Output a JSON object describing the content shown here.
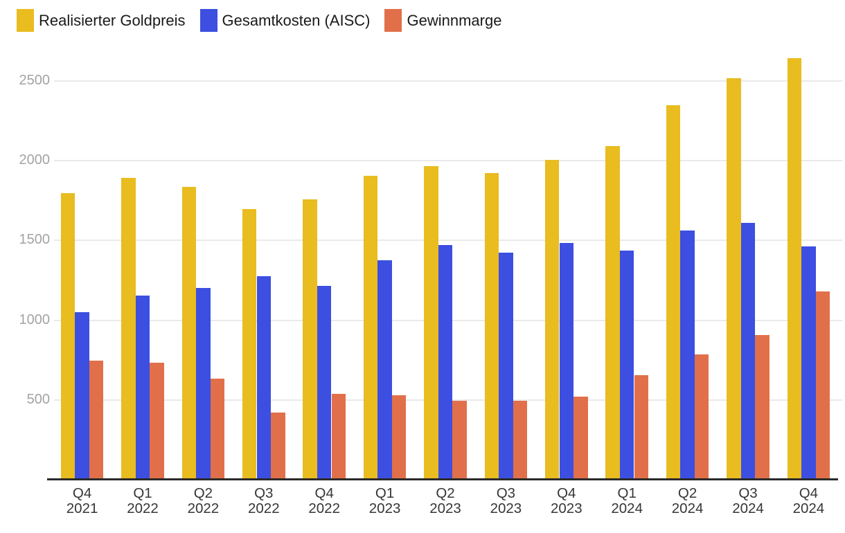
{
  "chart_data": {
    "type": "bar",
    "title": "",
    "xlabel": "",
    "ylabel": "",
    "categories": [
      {
        "quarter": "Q4",
        "year": "2021"
      },
      {
        "quarter": "Q1",
        "year": "2022"
      },
      {
        "quarter": "Q2",
        "year": "2022"
      },
      {
        "quarter": "Q3",
        "year": "2022"
      },
      {
        "quarter": "Q4",
        "year": "2022"
      },
      {
        "quarter": "Q1",
        "year": "2023"
      },
      {
        "quarter": "Q2",
        "year": "2023"
      },
      {
        "quarter": "Q3",
        "year": "2023"
      },
      {
        "quarter": "Q4",
        "year": "2023"
      },
      {
        "quarter": "Q1",
        "year": "2024"
      },
      {
        "quarter": "Q2",
        "year": "2024"
      },
      {
        "quarter": "Q3",
        "year": "2024"
      },
      {
        "quarter": "Q4",
        "year": "2024"
      }
    ],
    "series": [
      {
        "name": "Realisierter Goldpreis",
        "color": "#E9BC20",
        "values": [
          1795,
          1890,
          1835,
          1695,
          1755,
          1905,
          1965,
          1920,
          2005,
          2090,
          2345,
          2515,
          2640
        ]
      },
      {
        "name": "Gesamtkosten (AISC)",
        "color": "#3C4FE1",
        "values": [
          1050,
          1155,
          1200,
          1275,
          1215,
          1375,
          1470,
          1425,
          1485,
          1435,
          1560,
          1610,
          1460
        ]
      },
      {
        "name": "Gewinnmarge",
        "color": "#E1704A",
        "values": [
          745,
          735,
          635,
          420,
          540,
          530,
          495,
          495,
          520,
          655,
          785,
          905,
          1180
        ]
      }
    ],
    "y_ticks": [
      500,
      1000,
      1500,
      2000,
      2500
    ],
    "ylim": [
      0,
      2700
    ],
    "grid": true,
    "legend_position": "top-left"
  },
  "colors": {
    "background": "#ffffff",
    "gridline": "#e9e9e9",
    "axis_line": "#2a2a2a",
    "y_tick_text": "#a3a3a3",
    "x_tick_text": "#363636",
    "legend_text": "#1a1a1a"
  }
}
